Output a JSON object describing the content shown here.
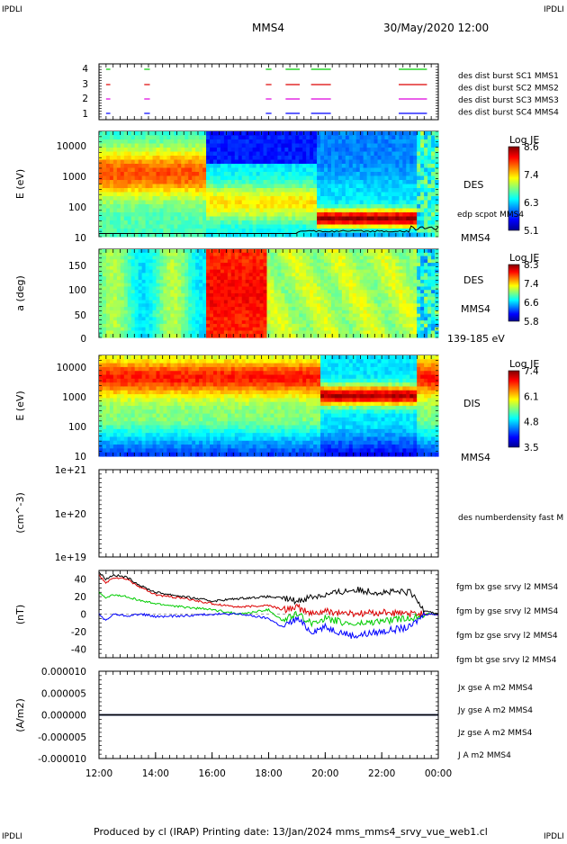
{
  "header": {
    "corner_tl": "IPDLI",
    "corner_tr": "IPDLI",
    "corner_bl": "IPDLI",
    "corner_br": "IPDLI",
    "spacecraft": "MMS4",
    "date": "30/May/2020 12:00"
  },
  "footer": {
    "text": "Produced by cl (IRAP)   Printing date: 13/Jan/2024   mms_mms4_srvy_vue_web1.cl"
  },
  "colors": {
    "mms1": "#0000ff",
    "mms2": "#dd00dd",
    "mms3": "#dd0000",
    "mms4": "#00cc00",
    "black": "#000000"
  },
  "chart_data": [
    {
      "type": "heatmap",
      "panel": "availability",
      "yticks": [
        "4",
        "3",
        "2",
        "1"
      ],
      "legend": [
        {
          "text": "des dist burst SC1 MMS1",
          "color": "#0000ff"
        },
        {
          "text": "des dist burst SC2 MMS2",
          "color": "#dd00dd"
        },
        {
          "text": "des dist burst SC3 MMS3",
          "color": "#dd0000"
        },
        {
          "text": "des dist burst SC4 MMS4",
          "color": "#00cc00"
        }
      ],
      "intervals_hours": [
        [
          0.25,
          0.4
        ],
        [
          1.6,
          1.8
        ],
        [
          5.9,
          6.1
        ],
        [
          6.6,
          7.1
        ],
        [
          7.5,
          8.2
        ],
        [
          10.6,
          11.6
        ]
      ]
    },
    {
      "type": "heatmap",
      "panel": "des-energy",
      "ylabel": "E (eV)",
      "yticks": [
        "10000",
        "1000",
        "100",
        "10"
      ],
      "labels": [
        "DES",
        "edp scpot MMS4",
        "MMS4"
      ],
      "colorbar": {
        "title": "Log JE",
        "ticks": [
          "8.6",
          "7.4",
          "6.3",
          "5.1"
        ]
      }
    },
    {
      "type": "heatmap",
      "panel": "des-pitch",
      "ylabel": "a (deg)",
      "yticks": [
        "150",
        "100",
        "50",
        "0"
      ],
      "labels": [
        "DES",
        "MMS4",
        "139-185 eV"
      ],
      "colorbar": {
        "title": "Log JE",
        "ticks": [
          "8.3",
          "7.4",
          "6.6",
          "5.8"
        ]
      }
    },
    {
      "type": "heatmap",
      "panel": "dis-energy",
      "ylabel": "E (eV)",
      "yticks": [
        "10000",
        "1000",
        "100",
        "10"
      ],
      "labels": [
        "DIS",
        "MMS4"
      ],
      "colorbar": {
        "title": "Log JE",
        "ticks": [
          "7.4",
          "6.1",
          "4.8",
          "3.5"
        ]
      }
    },
    {
      "type": "line",
      "panel": "density",
      "ylabel": "(cm^-3)",
      "yticks": [
        "1e+21",
        "1e+20",
        "1e+19"
      ],
      "labels": [
        "des numberdensity fast M"
      ]
    },
    {
      "type": "line",
      "panel": "fgm",
      "ylabel": "(nT)",
      "yticks": [
        "40",
        "20",
        "0",
        "-20",
        "-40"
      ],
      "ylim": [
        -50,
        50
      ],
      "x_hours": [
        0,
        0.25,
        0.5,
        1,
        1.5,
        2,
        3,
        4,
        5,
        6,
        6.5,
        7,
        7.5,
        8,
        9,
        10,
        11,
        11.5,
        12
      ],
      "series": [
        {
          "name": "fgm bx gse srvy l2 MMS4",
          "color": "#dd0000",
          "values": [
            45,
            35,
            42,
            40,
            30,
            22,
            18,
            12,
            8,
            10,
            5,
            8,
            0,
            3,
            0,
            2,
            0,
            0,
            0
          ]
        },
        {
          "name": "fgm by gse srvy l2 MMS4",
          "color": "#00cc00",
          "values": [
            25,
            18,
            22,
            20,
            15,
            12,
            8,
            5,
            0,
            5,
            -8,
            0,
            -10,
            -5,
            -12,
            -8,
            -5,
            0,
            0
          ]
        },
        {
          "name": "fgm bz gse srvy l2 MMS4",
          "color": "#0000ff",
          "values": [
            0,
            -8,
            0,
            -2,
            0,
            -3,
            -2,
            0,
            0,
            -5,
            -15,
            -5,
            -20,
            -15,
            -25,
            -20,
            -15,
            0,
            0
          ]
        },
        {
          "name": "fgm bt gse srvy l2 MMS4",
          "color": "#000000",
          "values": [
            48,
            40,
            45,
            42,
            32,
            25,
            20,
            15,
            18,
            20,
            18,
            15,
            20,
            22,
            28,
            25,
            25,
            5,
            0
          ]
        }
      ]
    },
    {
      "type": "line",
      "panel": "current",
      "ylabel": "(A/m2)",
      "yticks": [
        "0.000010",
        "0.000005",
        "0.000000",
        "-0.000005",
        "-0.000010"
      ],
      "ylim": [
        -1e-05,
        1e-05
      ],
      "series": [
        {
          "name": "Jx gse A m2 MMS4",
          "color": "#dd0000",
          "values": [
            0
          ]
        },
        {
          "name": "Jy gse A m2 MMS4",
          "color": "#00cc00",
          "values": [
            0
          ]
        },
        {
          "name": "Jz gse A m2 MMS4",
          "color": "#0000ff",
          "values": [
            0
          ]
        },
        {
          "name": "J A m2 MMS4",
          "color": "#000000",
          "values": [
            0
          ]
        }
      ]
    },
    {
      "type": "axis",
      "panel": "time-axis",
      "xticks": [
        "12:00",
        "14:00",
        "16:00",
        "18:00",
        "20:00",
        "22:00",
        "00:00"
      ]
    }
  ]
}
